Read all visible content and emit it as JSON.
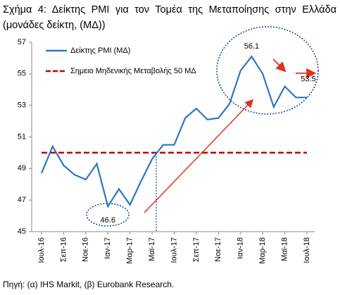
{
  "chart_data": {
    "type": "line",
    "title": "Σχήμα 4: Δείκτης PMI για τον Τομέα της Μεταποίησης στην Ελλάδα (μονάδες δείκτη, (ΜΔ))",
    "source": "Πηγή: (α) IHS Markit, (β) Eurobank Research.",
    "categories": [
      "Ιουλ-16",
      null,
      "Σεπ-16",
      null,
      "Νοε-16",
      null,
      "Ιαν-17",
      null,
      "Μαρ-17",
      null,
      "Μαϊ-17",
      null,
      "Ιουλ-17",
      null,
      "Σεπ-17",
      null,
      "Νοε-17",
      null,
      "Ιαν-18",
      null,
      "Μαρ-18",
      null,
      "Μαϊ-18",
      null,
      "Ιουλ-18"
    ],
    "series": [
      {
        "name": "Δείκτης PMI (ΜΔ)",
        "color": "#2e75c8",
        "values": [
          48.7,
          50.4,
          49.2,
          48.6,
          48.3,
          49.3,
          46.6,
          47.7,
          46.7,
          48.2,
          49.6,
          50.5,
          50.5,
          52.2,
          52.8,
          52.1,
          52.2,
          53.1,
          55.2,
          56.1,
          55.0,
          52.9,
          54.2,
          53.5,
          53.5
        ]
      }
    ],
    "reference_line": {
      "name": "Σημειο Μηδενικής Μεταβολής 50 ΜΔ",
      "value": 50,
      "color": "#c00000"
    },
    "ylim": [
      45,
      57
    ],
    "yticks": [
      45,
      47,
      49,
      51,
      53,
      55,
      57
    ],
    "grid": false
  }
}
